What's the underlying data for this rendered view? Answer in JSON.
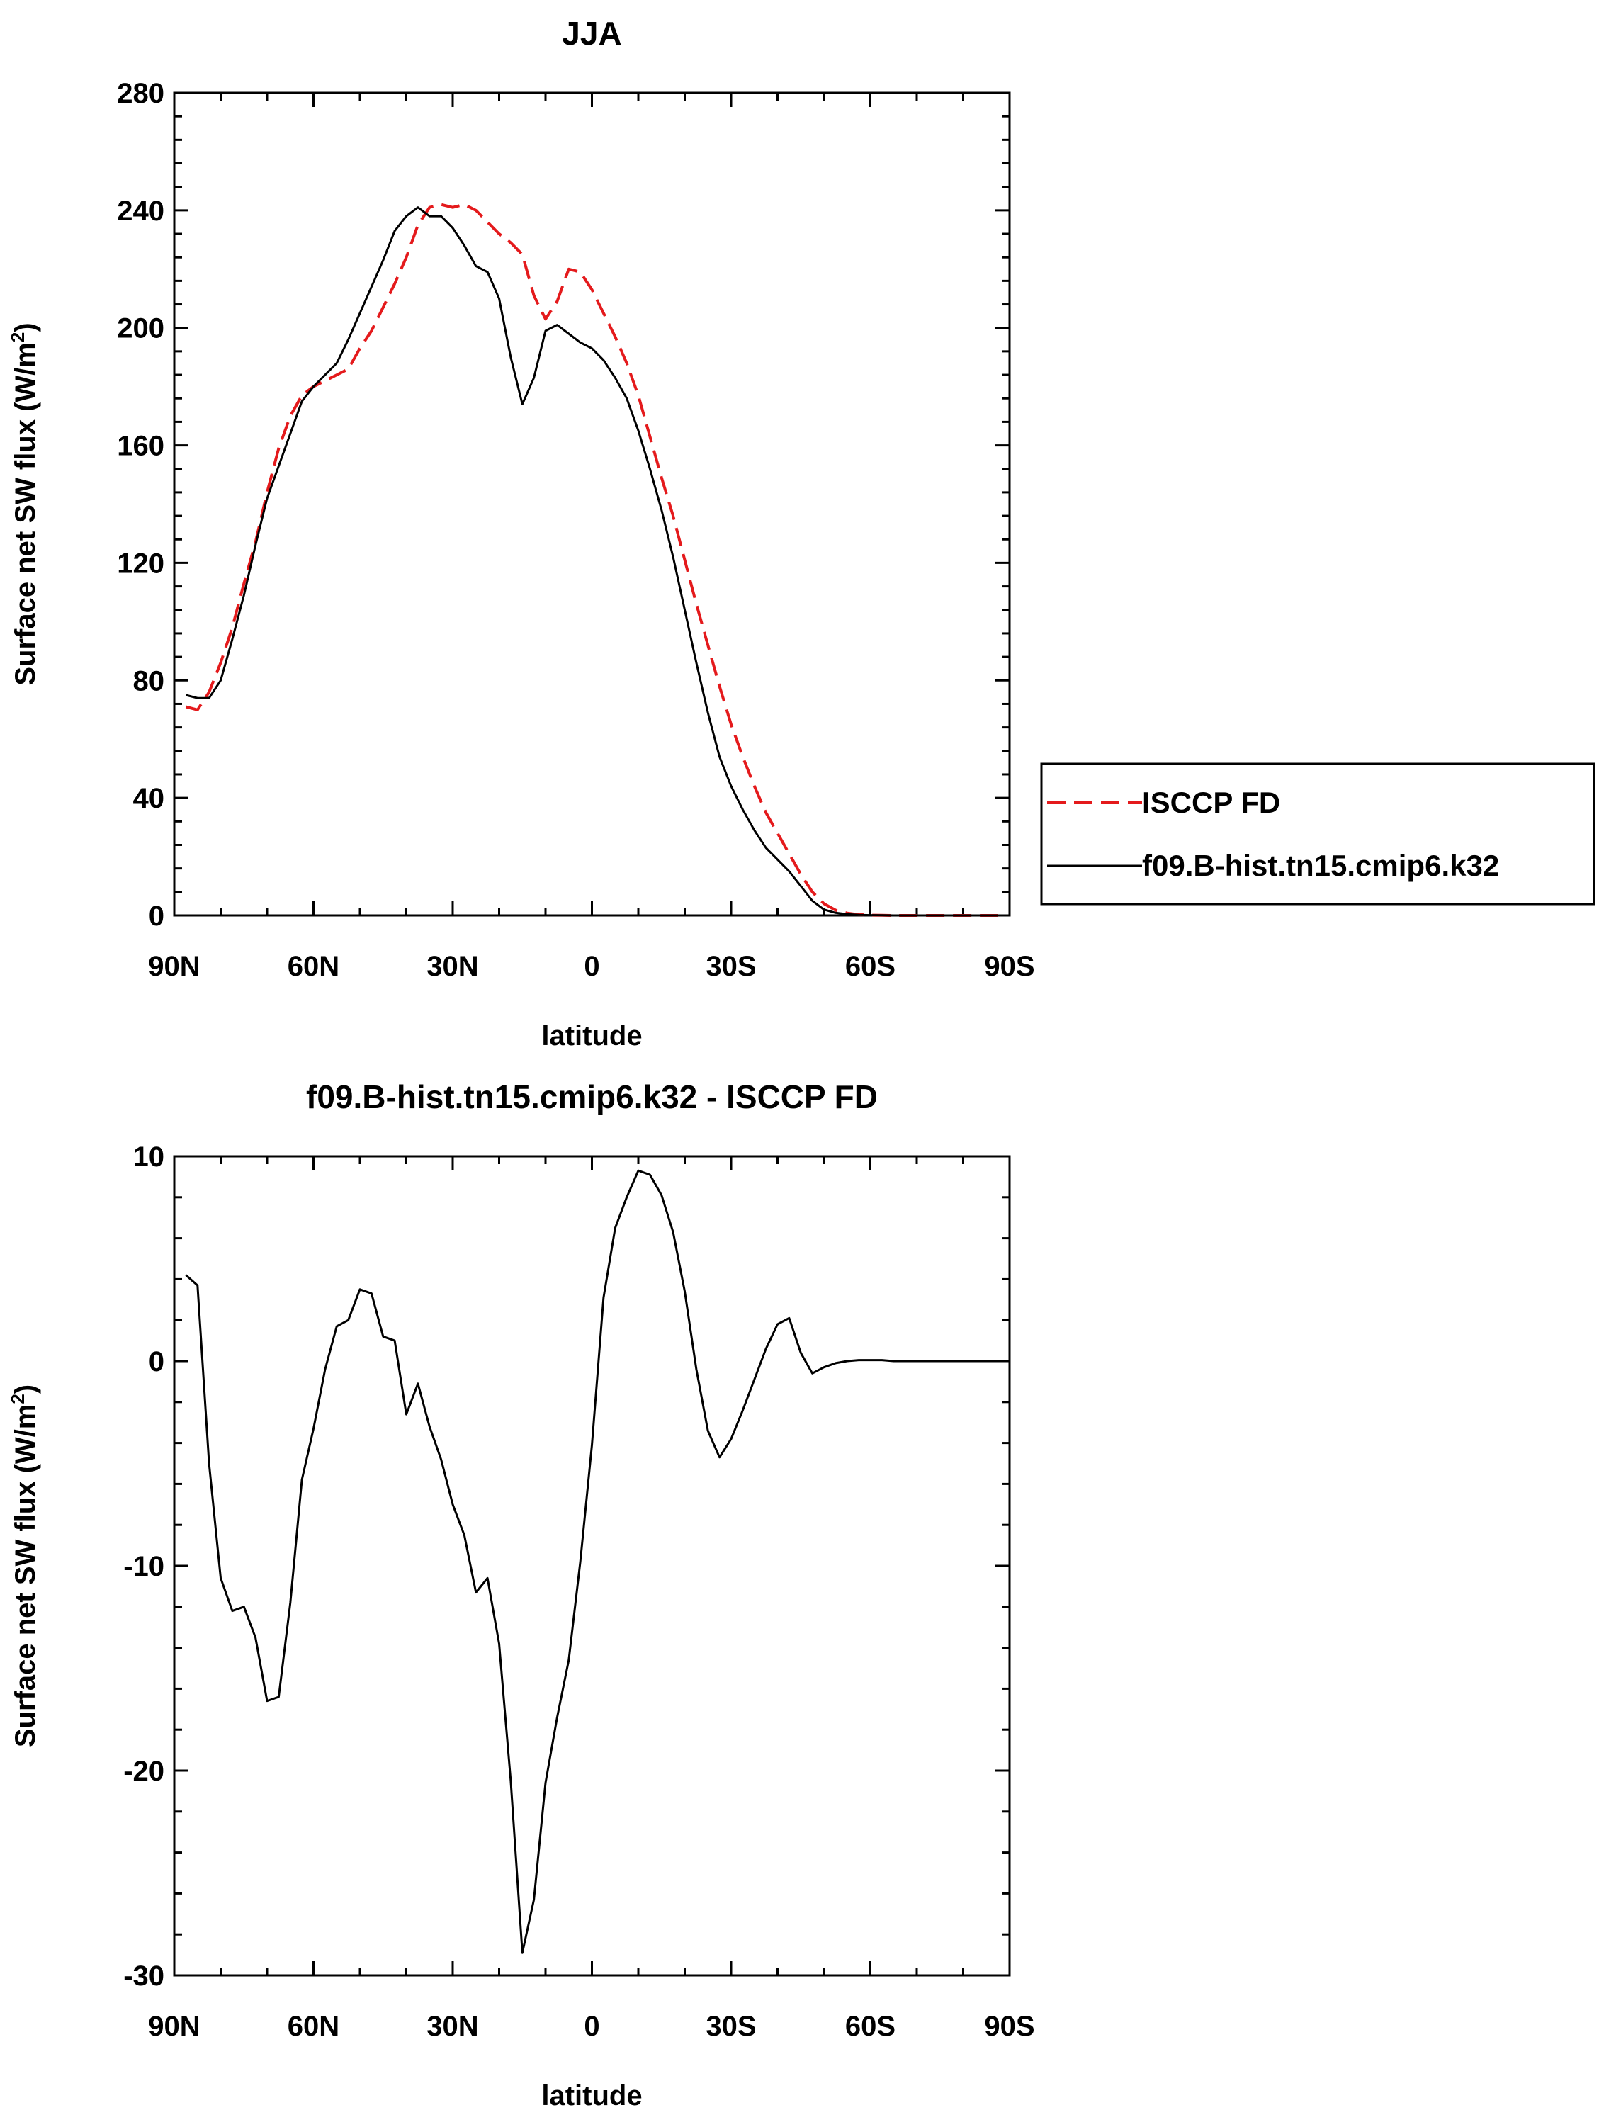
{
  "chart_data": [
    {
      "type": "line",
      "title": "JJA",
      "xlabel": "latitude",
      "ylabel": "Surface net SW flux (W/m",
      "ylabel_sup": "2",
      "ylabel_end": ")",
      "xlim": [
        90,
        -90
      ],
      "ylim": [
        0,
        280
      ],
      "x_ticks": [
        90,
        60,
        30,
        0,
        -30,
        -60,
        -90
      ],
      "x_tick_labels": [
        "90N",
        "60N",
        "30N",
        "0",
        "30S",
        "60S",
        "90S"
      ],
      "y_ticks": [
        0,
        40,
        80,
        120,
        160,
        200,
        240,
        280
      ],
      "y_tick_labels": [
        "0",
        "40",
        "80",
        "120",
        "160",
        "200",
        "240",
        "280"
      ],
      "legend": {
        "placement": "right",
        "entries": [
          "ISCCP FD",
          "f09.B-hist.tn15.cmip6.k32"
        ]
      },
      "series": [
        {
          "name": "ISCCP FD",
          "color": "#e41a1c",
          "dash": "dashed",
          "x": [
            87.5,
            85,
            82.5,
            80,
            77.5,
            75,
            72.5,
            70,
            67.5,
            65,
            62.5,
            60,
            57.5,
            55,
            52.5,
            50,
            47.5,
            45,
            42.5,
            40,
            37.5,
            35,
            32.5,
            30,
            27.5,
            25,
            22.5,
            20,
            17.5,
            15,
            12.5,
            10,
            7.5,
            5,
            2.5,
            0,
            -2.5,
            -5,
            -7.5,
            -10,
            -12.5,
            -15,
            -17.5,
            -20,
            -22.5,
            -25,
            -27.5,
            -30,
            -32.5,
            -35,
            -37.5,
            -40,
            -42.5,
            -45,
            -47.5,
            -50,
            -52.5,
            -55,
            -57.5,
            -60,
            -62.5,
            -65,
            -67.5,
            -70,
            -72.5,
            -75,
            -77.5,
            -80,
            -82.5,
            -85,
            -87.5
          ],
          "y": [
            71,
            70,
            76,
            86,
            98,
            113,
            127,
            144,
            159,
            170,
            177,
            180,
            182,
            184,
            186,
            193,
            199,
            207,
            215,
            224,
            235,
            241,
            242,
            241,
            242,
            240,
            236,
            232,
            229,
            225,
            211,
            203,
            209,
            220,
            219,
            213,
            205,
            197,
            188,
            177,
            163,
            149,
            136,
            121,
            106,
            92,
            78,
            65,
            54,
            44,
            35,
            28,
            21,
            14,
            8,
            4,
            1.8,
            0.8,
            0.3,
            0.1,
            0.05,
            0,
            0,
            0,
            0,
            0,
            0,
            0,
            0,
            0,
            0
          ]
        },
        {
          "name": "f09.B-hist.tn15.cmip6.k32",
          "color": "#000000",
          "dash": "solid",
          "x": [
            87.5,
            85,
            82.5,
            80,
            77.5,
            75,
            72.5,
            70,
            67.5,
            65,
            62.5,
            60,
            57.5,
            55,
            52.5,
            50,
            47.5,
            45,
            42.5,
            40,
            37.5,
            35,
            32.5,
            30,
            27.5,
            25,
            22.5,
            20,
            17.5,
            15,
            12.5,
            10,
            7.5,
            5,
            2.5,
            0,
            -2.5,
            -5,
            -7.5,
            -10,
            -12.5,
            -15,
            -17.5,
            -20,
            -22.5,
            -25,
            -27.5,
            -30,
            -32.5,
            -35,
            -37.5,
            -40,
            -42.5,
            -45,
            -47.5,
            -50,
            -52.5,
            -55,
            -57.5,
            -60,
            -62.5,
            -65,
            -67.5,
            -70,
            -72.5,
            -75,
            -77.5,
            -80,
            -82.5,
            -85,
            -87.5
          ],
          "y": [
            75,
            74,
            74,
            80,
            94,
            109,
            126,
            142,
            153,
            164,
            175,
            180,
            184,
            188,
            196,
            205,
            214,
            223,
            233,
            238,
            241,
            238,
            238,
            234,
            228,
            221,
            219,
            210,
            190,
            174,
            183,
            199,
            201,
            198,
            195,
            193,
            189,
            183,
            176,
            165,
            152,
            138,
            122,
            104,
            86,
            69,
            54,
            44,
            36,
            29,
            23,
            19,
            15,
            10,
            5,
            2,
            0.9,
            0.4,
            0.2,
            0.1,
            0.05,
            0,
            0,
            0,
            0,
            0,
            0,
            0,
            0,
            0,
            0
          ]
        }
      ]
    },
    {
      "type": "line",
      "title": "f09.B-hist.tn15.cmip6.k32 - ISCCP FD",
      "xlabel": "latitude",
      "ylabel": "Surface net SW flux (W/m",
      "ylabel_sup": "2",
      "ylabel_end": ")",
      "xlim": [
        90,
        -90
      ],
      "ylim": [
        -30,
        10
      ],
      "x_ticks": [
        90,
        60,
        30,
        0,
        -30,
        -60,
        -90
      ],
      "x_tick_labels": [
        "90N",
        "60N",
        "30N",
        "0",
        "30S",
        "60S",
        "90S"
      ],
      "y_ticks": [
        -30,
        -20,
        -10,
        0,
        10
      ],
      "y_tick_labels": [
        "-30",
        "-20",
        "-10",
        "0",
        "10"
      ],
      "series": [
        {
          "color": "#000000",
          "dash": "solid",
          "x": [
            87.5,
            85,
            82.5,
            80,
            77.5,
            75,
            72.5,
            70,
            67.5,
            65,
            62.5,
            60,
            57.5,
            55,
            52.5,
            50,
            47.5,
            45,
            42.5,
            40,
            37.5,
            35,
            32.5,
            30,
            27.5,
            25,
            22.5,
            20,
            17.5,
            15,
            12.5,
            10,
            7.5,
            5,
            2.5,
            0,
            -2.5,
            -5,
            -7.5,
            -10,
            -12.5,
            -15,
            -17.5,
            -20,
            -22.5,
            -25,
            -27.5,
            -30,
            -32.5,
            -35,
            -37.5,
            -40,
            -42.5,
            -45,
            -47.5,
            -50,
            -52.5,
            -55,
            -57.5,
            -60,
            -62.5,
            -65,
            -67.5,
            -70,
            -72.5,
            -75,
            -77.5,
            -80,
            -82.5,
            -85,
            -87.5
          ],
          "y": [
            4.2,
            3.7,
            -5.0,
            -10.6,
            -12.2,
            -12.0,
            -13.5,
            -16.6,
            -16.4,
            -11.8,
            -5.8,
            -3.3,
            -0.4,
            1.7,
            2.0,
            3.5,
            3.3,
            1.2,
            1.0,
            -2.6,
            -1.1,
            -3.2,
            -4.8,
            -7.0,
            -8.5,
            -11.3,
            -10.6,
            -13.8,
            -20.5,
            -28.9,
            -26.3,
            -20.6,
            -17.4,
            -14.6,
            -9.8,
            -4.1,
            3.1,
            6.5,
            8.0,
            9.3,
            9.1,
            8.1,
            6.3,
            3.4,
            -0.4,
            -3.4,
            -4.7,
            -3.8,
            -2.4,
            -0.9,
            0.6,
            1.8,
            2.1,
            0.4,
            -0.6,
            -0.3,
            -0.1,
            0,
            0.05,
            0.05,
            0.05,
            0,
            0,
            0,
            0,
            0,
            0,
            0,
            0,
            0,
            0
          ]
        }
      ]
    }
  ]
}
